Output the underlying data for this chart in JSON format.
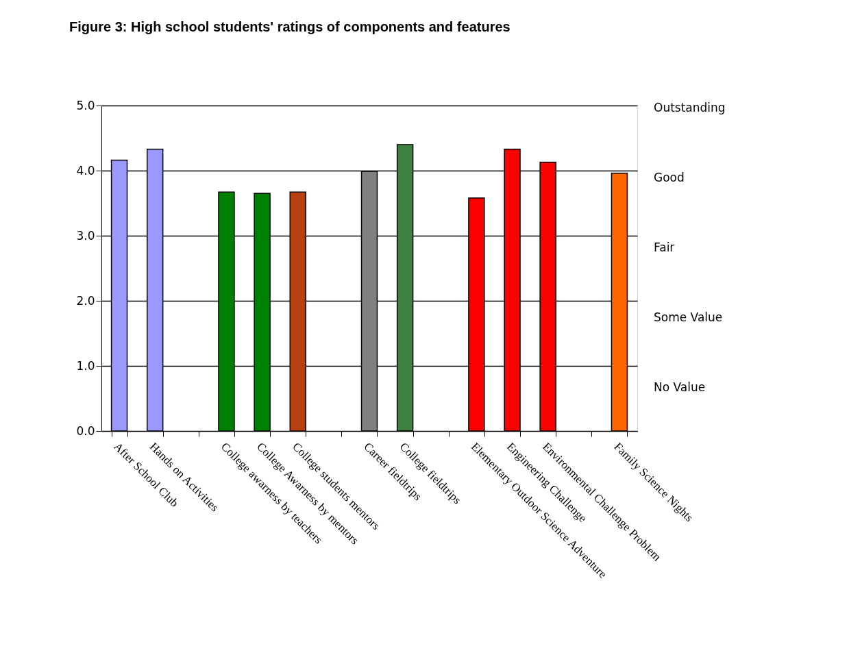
{
  "chart_data": {
    "type": "bar",
    "title": "Figure 3: High school students' ratings of components and features",
    "categories": [
      "After School Club",
      "Hands on Activities",
      null,
      "College awarness by teachers",
      "College Awarness by mentors",
      "College students mentors",
      null,
      "Career fieldtrips",
      "College fieldtrips",
      null,
      "Elementary Outdoor Science Adventure",
      "Engineering Challenge",
      "Environmental Challenge Problem",
      null,
      "Family Science Nights"
    ],
    "values": [
      4.16,
      4.33,
      null,
      3.67,
      3.65,
      3.67,
      null,
      3.99,
      4.4,
      null,
      3.58,
      4.33,
      4.13,
      null,
      3.96
    ],
    "colors": [
      "#9999ff",
      "#9999ff",
      "#ffffff",
      "#008000",
      "#008000",
      "#b84010",
      "#ffffff",
      "#808080",
      "#3f7f3f",
      "#ffffff",
      "#ff0000",
      "#ff0000",
      "#ff0000",
      "#ffffff",
      "#ff6600"
    ],
    "ylim": [
      0,
      5
    ],
    "yticks": [
      {
        "value": 0,
        "label": "0.0"
      },
      {
        "value": 1,
        "label": "1.0"
      },
      {
        "value": 2,
        "label": "2.0"
      },
      {
        "value": 3,
        "label": "3.0"
      },
      {
        "value": 4,
        "label": "4.0"
      },
      {
        "value": 5,
        "label": "5.0"
      }
    ],
    "annotations": [
      "Outstanding",
      "Good",
      "Fair",
      "Some Value",
      "No Value"
    ],
    "grid": "y",
    "legend": false
  }
}
